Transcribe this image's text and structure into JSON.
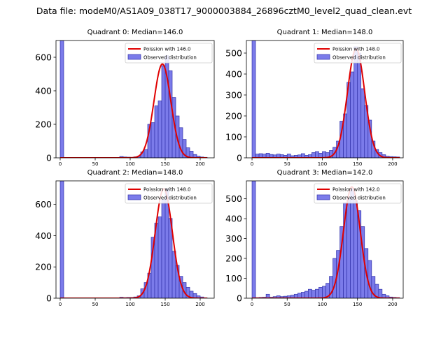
{
  "figure_title": "Data file: modeM0/AS1A09_038T17_9000003884_26896cztM0_level2_quad_clean.evt",
  "colors": {
    "hist_fill": "#7b7bea",
    "hist_edge": "#3333aa",
    "curve": "#e00000"
  },
  "chart_data": [
    {
      "type": "bar",
      "title": "Quadrant 0: Median=146.0",
      "legend": {
        "placement": "top-right",
        "entries": [
          "Poission with 146.0",
          "Observed distribution"
        ]
      },
      "xlim": [
        -6,
        220
      ],
      "ylim": [
        0,
        700
      ],
      "xticks": [
        0,
        50,
        100,
        150,
        200
      ],
      "yticks": [
        0,
        200,
        400,
        600
      ],
      "median": 146.0,
      "peak": 560,
      "curve_sigma": 12,
      "bin_width": 5,
      "bins": [
        {
          "x": 0,
          "y": 700
        },
        {
          "x": 85,
          "y": 8
        },
        {
          "x": 90,
          "y": 5
        },
        {
          "x": 95,
          "y": 4
        },
        {
          "x": 100,
          "y": 3
        },
        {
          "x": 105,
          "y": 6
        },
        {
          "x": 110,
          "y": 10
        },
        {
          "x": 115,
          "y": 35
        },
        {
          "x": 120,
          "y": 50
        },
        {
          "x": 125,
          "y": 200
        },
        {
          "x": 130,
          "y": 210
        },
        {
          "x": 135,
          "y": 310
        },
        {
          "x": 140,
          "y": 340
        },
        {
          "x": 145,
          "y": 550
        },
        {
          "x": 150,
          "y": 610
        },
        {
          "x": 155,
          "y": 520
        },
        {
          "x": 160,
          "y": 360
        },
        {
          "x": 165,
          "y": 250
        },
        {
          "x": 170,
          "y": 180
        },
        {
          "x": 175,
          "y": 110
        },
        {
          "x": 180,
          "y": 60
        },
        {
          "x": 185,
          "y": 40
        },
        {
          "x": 190,
          "y": 20
        },
        {
          "x": 195,
          "y": 10
        },
        {
          "x": 200,
          "y": 5
        },
        {
          "x": 205,
          "y": 3
        }
      ]
    },
    {
      "type": "bar",
      "title": "Quadrant 1: Median=148.0",
      "legend": {
        "placement": "top-right",
        "entries": [
          "Poission with 148.0",
          "Observed distribution"
        ]
      },
      "xlim": [
        -8,
        215
      ],
      "ylim": [
        0,
        560
      ],
      "xticks": [
        0,
        50,
        100,
        150,
        200
      ],
      "yticks": [
        0,
        100,
        200,
        300,
        400,
        500
      ],
      "median": 148.0,
      "peak": 520,
      "curve_sigma": 12.2,
      "bin_width": 5,
      "bins": [
        {
          "x": 0,
          "y": 560
        },
        {
          "x": 5,
          "y": 18
        },
        {
          "x": 10,
          "y": 20
        },
        {
          "x": 15,
          "y": 18
        },
        {
          "x": 20,
          "y": 22
        },
        {
          "x": 25,
          "y": 16
        },
        {
          "x": 30,
          "y": 14
        },
        {
          "x": 35,
          "y": 18
        },
        {
          "x": 40,
          "y": 15
        },
        {
          "x": 45,
          "y": 12
        },
        {
          "x": 50,
          "y": 18
        },
        {
          "x": 55,
          "y": 10
        },
        {
          "x": 60,
          "y": 12
        },
        {
          "x": 65,
          "y": 14
        },
        {
          "x": 70,
          "y": 20
        },
        {
          "x": 75,
          "y": 12
        },
        {
          "x": 80,
          "y": 15
        },
        {
          "x": 85,
          "y": 25
        },
        {
          "x": 90,
          "y": 30
        },
        {
          "x": 95,
          "y": 22
        },
        {
          "x": 100,
          "y": 30
        },
        {
          "x": 105,
          "y": 25
        },
        {
          "x": 110,
          "y": 35
        },
        {
          "x": 115,
          "y": 50
        },
        {
          "x": 120,
          "y": 80
        },
        {
          "x": 125,
          "y": 175
        },
        {
          "x": 130,
          "y": 210
        },
        {
          "x": 135,
          "y": 360
        },
        {
          "x": 140,
          "y": 410
        },
        {
          "x": 145,
          "y": 530
        },
        {
          "x": 150,
          "y": 500
        },
        {
          "x": 155,
          "y": 330
        },
        {
          "x": 160,
          "y": 250
        },
        {
          "x": 165,
          "y": 180
        },
        {
          "x": 170,
          "y": 80
        },
        {
          "x": 175,
          "y": 40
        },
        {
          "x": 180,
          "y": 25
        },
        {
          "x": 185,
          "y": 15
        },
        {
          "x": 190,
          "y": 8
        },
        {
          "x": 195,
          "y": 6
        },
        {
          "x": 200,
          "y": 5
        },
        {
          "x": 205,
          "y": 4
        }
      ]
    },
    {
      "type": "bar",
      "title": "Quadrant 2: Median=148.0",
      "legend": {
        "placement": "top-right",
        "entries": [
          "Poission with 148.0",
          "Observed distribution"
        ]
      },
      "xlim": [
        -6,
        220
      ],
      "ylim": [
        0,
        750
      ],
      "xticks": [
        0,
        50,
        100,
        150,
        200
      ],
      "yticks": [
        0,
        200,
        400,
        600
      ],
      "median": 148.0,
      "peak": 700,
      "curve_sigma": 12.2,
      "bin_width": 5,
      "bins": [
        {
          "x": 0,
          "y": 750
        },
        {
          "x": 85,
          "y": 6
        },
        {
          "x": 90,
          "y": 4
        },
        {
          "x": 95,
          "y": 5
        },
        {
          "x": 100,
          "y": 5
        },
        {
          "x": 105,
          "y": 8
        },
        {
          "x": 110,
          "y": 15
        },
        {
          "x": 115,
          "y": 60
        },
        {
          "x": 120,
          "y": 100
        },
        {
          "x": 125,
          "y": 160
        },
        {
          "x": 130,
          "y": 390
        },
        {
          "x": 135,
          "y": 480
        },
        {
          "x": 140,
          "y": 520
        },
        {
          "x": 145,
          "y": 630
        },
        {
          "x": 150,
          "y": 700
        },
        {
          "x": 155,
          "y": 510
        },
        {
          "x": 160,
          "y": 300
        },
        {
          "x": 165,
          "y": 210
        },
        {
          "x": 170,
          "y": 140
        },
        {
          "x": 175,
          "y": 100
        },
        {
          "x": 180,
          "y": 70
        },
        {
          "x": 185,
          "y": 45
        },
        {
          "x": 190,
          "y": 30
        },
        {
          "x": 195,
          "y": 15
        },
        {
          "x": 200,
          "y": 8
        },
        {
          "x": 205,
          "y": 3
        }
      ]
    },
    {
      "type": "bar",
      "title": "Quadrant 3: Median=142.0",
      "legend": {
        "placement": "top-right",
        "entries": [
          "Poission with 142.0",
          "Observed distribution"
        ]
      },
      "xlim": [
        -8,
        215
      ],
      "ylim": [
        0,
        590
      ],
      "xticks": [
        0,
        50,
        100,
        150,
        200
      ],
      "yticks": [
        0,
        100,
        200,
        300,
        400,
        500
      ],
      "median": 142.0,
      "peak": 560,
      "curve_sigma": 11.9,
      "bin_width": 5,
      "bins": [
        {
          "x": 0,
          "y": 590
        },
        {
          "x": 5,
          "y": 3
        },
        {
          "x": 10,
          "y": 4
        },
        {
          "x": 15,
          "y": 5
        },
        {
          "x": 20,
          "y": 20
        },
        {
          "x": 25,
          "y": 5
        },
        {
          "x": 30,
          "y": 8
        },
        {
          "x": 35,
          "y": 12
        },
        {
          "x": 40,
          "y": 8
        },
        {
          "x": 45,
          "y": 10
        },
        {
          "x": 50,
          "y": 12
        },
        {
          "x": 55,
          "y": 15
        },
        {
          "x": 60,
          "y": 20
        },
        {
          "x": 65,
          "y": 25
        },
        {
          "x": 70,
          "y": 30
        },
        {
          "x": 75,
          "y": 35
        },
        {
          "x": 80,
          "y": 45
        },
        {
          "x": 85,
          "y": 40
        },
        {
          "x": 90,
          "y": 45
        },
        {
          "x": 95,
          "y": 55
        },
        {
          "x": 100,
          "y": 60
        },
        {
          "x": 105,
          "y": 75
        },
        {
          "x": 110,
          "y": 110
        },
        {
          "x": 115,
          "y": 200
        },
        {
          "x": 120,
          "y": 240
        },
        {
          "x": 125,
          "y": 360
        },
        {
          "x": 130,
          "y": 480
        },
        {
          "x": 135,
          "y": 500
        },
        {
          "x": 140,
          "y": 550
        },
        {
          "x": 145,
          "y": 490
        },
        {
          "x": 150,
          "y": 440
        },
        {
          "x": 155,
          "y": 360
        },
        {
          "x": 160,
          "y": 250
        },
        {
          "x": 165,
          "y": 190
        },
        {
          "x": 170,
          "y": 110
        },
        {
          "x": 175,
          "y": 70
        },
        {
          "x": 180,
          "y": 45
        },
        {
          "x": 185,
          "y": 20
        },
        {
          "x": 190,
          "y": 12
        },
        {
          "x": 195,
          "y": 6
        },
        {
          "x": 200,
          "y": 4
        },
        {
          "x": 205,
          "y": 3
        }
      ]
    }
  ]
}
